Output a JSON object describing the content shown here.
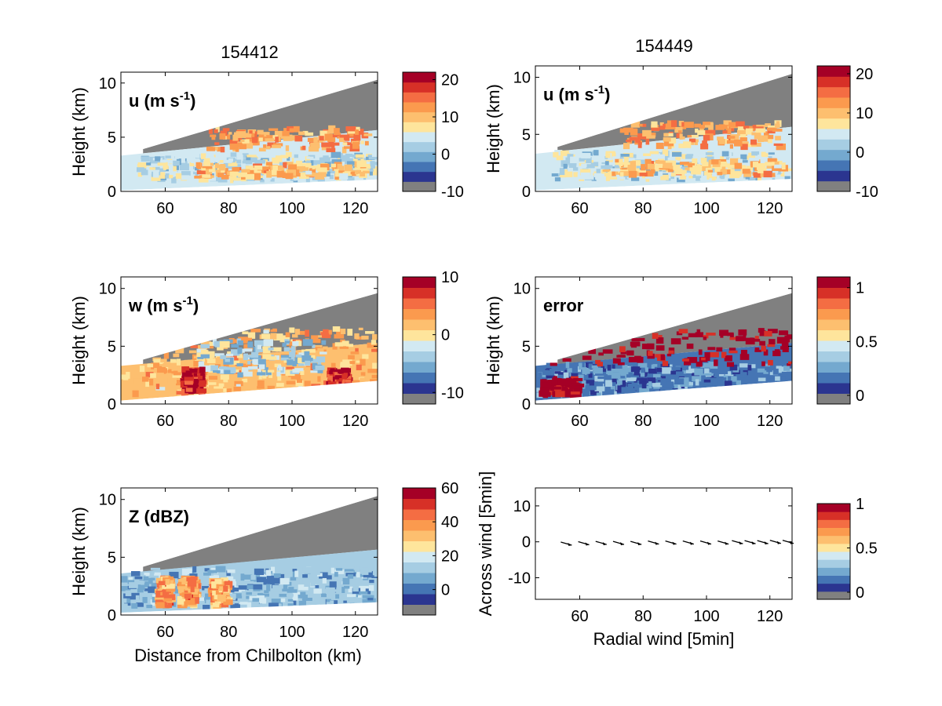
{
  "figure": {
    "column_titles": [
      "154412",
      "154449"
    ],
    "shared_xlabel": "Distance from Chilbolton (km)"
  },
  "colormap": [
    "#808080",
    "#2b3590",
    "#4575b4",
    "#74a9cf",
    "#a6cde3",
    "#d2e9f2",
    "#fee59c",
    "#fdbf6f",
    "#fb9a4e",
    "#f46d43",
    "#d73027",
    "#a50026"
  ],
  "colors": {
    "cover_gray": "#808080",
    "axis": "#000000"
  },
  "chart_data": [
    {
      "id": "u-154412",
      "type": "heatmap",
      "panel_label": "u (m s-1)",
      "label_main": "u (m s",
      "label_sup": "-1",
      "label_end": ")",
      "ylabel": "Height (km)",
      "xlim": [
        46,
        127
      ],
      "ylim": [
        0,
        11
      ],
      "xticks": [
        60,
        80,
        100,
        120
      ],
      "yticks": [
        0,
        5,
        10
      ],
      "colorbar": {
        "range": [
          -10,
          22
        ],
        "ticks": [
          -10,
          0,
          10,
          20
        ]
      },
      "beam_top": [
        3.3,
        10.3
      ],
      "beam_bottom": [
        0.1,
        1.1
      ],
      "bands": [
        {
          "x": [
            52,
            127
          ],
          "y": [
            1.0,
            3.4
          ],
          "value": 4
        },
        {
          "x": [
            70,
            125
          ],
          "y": [
            1.3,
            2.6
          ],
          "value": 10
        },
        {
          "x": [
            74,
            124
          ],
          "y": [
            3.8,
            5.8
          ],
          "value": 12
        }
      ]
    },
    {
      "id": "u-154449",
      "type": "heatmap",
      "panel_label": "u (m s-1)",
      "label_main": "u (m s",
      "label_sup": "-1",
      "label_end": ")",
      "ylabel": "Height (km)",
      "xlim": [
        46,
        127
      ],
      "ylim": [
        0,
        11
      ],
      "xticks": [
        60,
        80,
        100,
        120
      ],
      "yticks": [
        0,
        5,
        10
      ],
      "colorbar": {
        "range": [
          -10,
          22
        ],
        "ticks": [
          -10,
          0,
          10,
          20
        ]
      },
      "beam_top": [
        3.3,
        10.3
      ],
      "beam_bottom": [
        0.1,
        1.1
      ],
      "bands": [
        {
          "x": [
            52,
            127
          ],
          "y": [
            1.0,
            3.4
          ],
          "value": 4
        },
        {
          "x": [
            68,
            125
          ],
          "y": [
            1.4,
            2.7
          ],
          "value": 10
        },
        {
          "x": [
            74,
            124
          ],
          "y": [
            3.9,
            6.0
          ],
          "value": 12
        }
      ]
    },
    {
      "id": "w-154412",
      "type": "heatmap",
      "panel_label": "w (m s-1)",
      "label_main": "w (m s",
      "label_sup": "-1",
      "label_end": ")",
      "ylabel": "Height (km)",
      "xlim": [
        46,
        127
      ],
      "ylim": [
        0,
        11
      ],
      "xticks": [
        60,
        80,
        100,
        120
      ],
      "yticks": [
        0,
        5,
        10
      ],
      "colorbar": {
        "range": [
          -12,
          10
        ],
        "ticks": [
          -10,
          0,
          10
        ]
      },
      "beam_top": [
        3.3,
        9.6
      ],
      "beam_bottom": [
        0.3,
        2.0
      ],
      "bands": [
        {
          "x": [
            47,
            127
          ],
          "y": [
            0.6,
            6.5
          ],
          "value": 2
        },
        {
          "x": [
            70,
            110
          ],
          "y": [
            2.5,
            5.5
          ],
          "value": -3
        },
        {
          "x": [
            66,
            72
          ],
          "y": [
            1.0,
            3.0
          ],
          "value": 9
        },
        {
          "x": [
            112,
            118
          ],
          "y": [
            1.2,
            3.0
          ],
          "value": 8
        }
      ]
    },
    {
      "id": "error-154449",
      "type": "heatmap",
      "panel_label": "error",
      "label_main": "error",
      "label_sup": "",
      "label_end": "",
      "ylabel": "Height (km)",
      "xlim": [
        46,
        127
      ],
      "ylim": [
        0,
        11
      ],
      "xticks": [
        60,
        80,
        100,
        120
      ],
      "yticks": [
        0,
        5,
        10
      ],
      "colorbar": {
        "range": [
          -0.08,
          1.1
        ],
        "ticks": [
          0,
          0.5,
          1
        ]
      },
      "beam_top": [
        3.3,
        9.6
      ],
      "beam_bottom": [
        0.3,
        2.0
      ],
      "bands": [
        {
          "x": [
            47,
            127
          ],
          "y": [
            0.5,
            3.4
          ],
          "value": 0.2
        },
        {
          "x": [
            48,
            127
          ],
          "y": [
            3.4,
            6.5
          ],
          "value": 1.1
        },
        {
          "x": [
            48,
            60
          ],
          "y": [
            0.8,
            2.2
          ],
          "value": 1.1
        }
      ]
    },
    {
      "id": "z-154412",
      "type": "heatmap",
      "panel_label": "Z (dBZ)",
      "label_main": "Z (dBZ)",
      "label_sup": "",
      "label_end": "",
      "ylabel": "Height (km)",
      "xlim": [
        46,
        127
      ],
      "ylim": [
        0,
        11
      ],
      "xticks": [
        60,
        80,
        100,
        120
      ],
      "yticks": [
        0,
        5,
        10
      ],
      "colorbar": {
        "range": [
          -15,
          60
        ],
        "ticks": [
          0,
          20,
          40,
          60
        ]
      },
      "beam_top": [
        3.6,
        10.3
      ],
      "beam_bottom": [
        0.2,
        1.1
      ],
      "bands": [
        {
          "x": [
            47,
            127
          ],
          "y": [
            0.6,
            4.0
          ],
          "value": 10
        },
        {
          "x": [
            58,
            62
          ],
          "y": [
            0.8,
            3.2
          ],
          "value": 38
        },
        {
          "x": [
            65,
            70
          ],
          "y": [
            0.8,
            3.2
          ],
          "value": 38
        },
        {
          "x": [
            75,
            80
          ],
          "y": [
            0.8,
            3.0
          ],
          "value": 34
        }
      ]
    },
    {
      "id": "wind-154449",
      "type": "scatter",
      "panel_label": "",
      "ylabel": "Across wind [5min]",
      "xlabel": "Radial wind [5min]",
      "xlim": [
        46,
        127
      ],
      "ylim": [
        -16,
        15
      ],
      "xticks": [
        60,
        80,
        100,
        120
      ],
      "yticks": [
        -10,
        0,
        10
      ],
      "colorbar": {
        "range": [
          -0.08,
          1.0
        ],
        "ticks": [
          0,
          0.5,
          1
        ]
      },
      "arrows_x": [
        56,
        61.5,
        67,
        72.5,
        78,
        83.5,
        89,
        94.5,
        100,
        105.5,
        110,
        114,
        118,
        122,
        126
      ],
      "arrows_y": [
        -0.5,
        -0.4,
        -0.3,
        -0.3,
        -0.3,
        -0.2,
        -0.2,
        -0.2,
        -0.2,
        -0.2,
        -0.1,
        -0.1,
        -0.1,
        0,
        0
      ]
    }
  ]
}
